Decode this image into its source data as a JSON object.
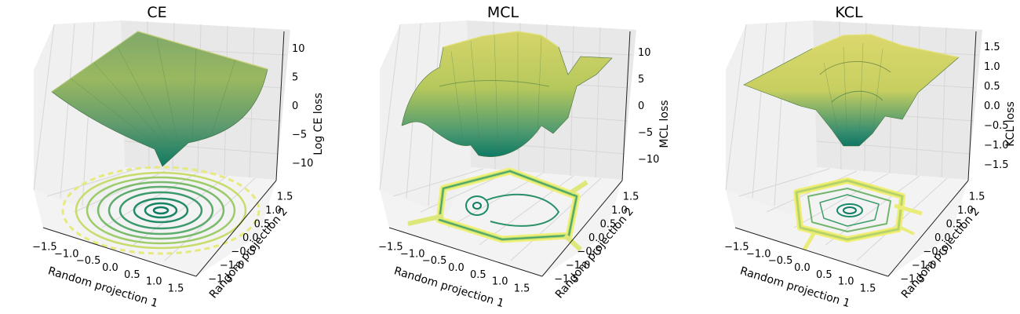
{
  "chart_data": [
    {
      "type": "surface3d",
      "title": "CE",
      "xlabel": "Random projection 1",
      "ylabel": "Random projection 2",
      "zlabel": "Log CE loss",
      "xticks": [
        "−1.5",
        "−1.0",
        "−0.5",
        "0.0",
        "0.5",
        "1.0",
        "1.5"
      ],
      "yticks": [
        "−1.5",
        "−1.0",
        "−0.5",
        "0.0",
        "0.5",
        "1.0",
        "1.5"
      ],
      "zticks": [
        "−10",
        "−5",
        "0",
        "5",
        "10"
      ],
      "xlim": [
        -1.75,
        1.75
      ],
      "ylim": [
        -1.75,
        1.75
      ],
      "zlim": [
        -13,
        13
      ],
      "colormap": "summer-to-teal"
    },
    {
      "type": "surface3d",
      "title": "MCL",
      "xlabel": "Random projection 1",
      "ylabel": "Random projection 2",
      "zlabel": "MCL loss",
      "xticks": [
        "−1.5",
        "−1.0",
        "−0.5",
        "0.0",
        "0.5",
        "1.0",
        "1.5"
      ],
      "yticks": [
        "−1.5",
        "−1.0",
        "−0.5",
        "0.0",
        "0.5",
        "1.0",
        "1.5"
      ],
      "zticks": [
        "−10",
        "−5",
        "0",
        "5",
        "10"
      ],
      "xlim": [
        -1.75,
        1.75
      ],
      "ylim": [
        -1.75,
        1.75
      ],
      "zlim": [
        -14,
        14
      ],
      "colormap": "summer-to-teal"
    },
    {
      "type": "surface3d",
      "title": "KCL",
      "xlabel": "Random projection 1",
      "ylabel": "Random projection 2",
      "zlabel": "KCL loss",
      "xticks": [
        "−1.5",
        "−1.0",
        "−0.5",
        "0.0",
        "0.5",
        "1.0",
        "1.5"
      ],
      "yticks": [
        "−1.5",
        "−1.0",
        "−0.5",
        "0.0",
        "0.5",
        "1.0",
        "1.5"
      ],
      "zticks": [
        "−1.5",
        "−1.0",
        "−0.5",
        "0.0",
        "0.5",
        "1.0",
        "1.5"
      ],
      "xlim": [
        -1.75,
        1.75
      ],
      "ylim": [
        -1.75,
        1.75
      ],
      "zlim": [
        -1.9,
        1.9
      ],
      "colormap": "summer-to-teal"
    }
  ]
}
